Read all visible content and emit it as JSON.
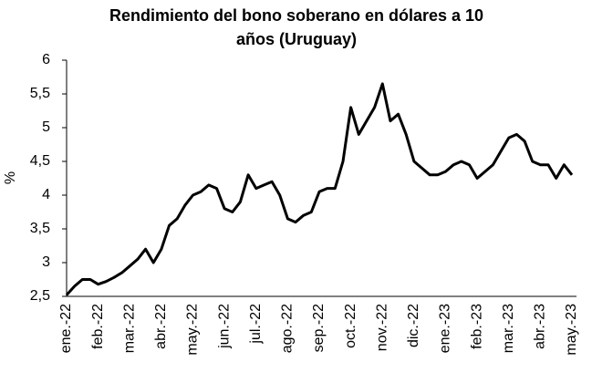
{
  "chart_data": {
    "type": "line",
    "title": "Rendimiento del bono soberano en dólares a 10",
    "subtitle": "años (Uruguay)",
    "y_label": "%",
    "categories": [
      "ene.-22",
      null,
      null,
      null,
      "feb.-22",
      null,
      null,
      null,
      "mar.-22",
      null,
      null,
      null,
      "abr.-22",
      null,
      null,
      null,
      "may.-22",
      null,
      null,
      null,
      "jun.-22",
      null,
      null,
      null,
      "jul.-22",
      null,
      null,
      null,
      "ago.-22",
      null,
      null,
      null,
      "sep.-22",
      null,
      null,
      null,
      "oct.-22",
      null,
      null,
      null,
      "nov.-22",
      null,
      null,
      null,
      "dic.-22",
      null,
      null,
      null,
      "ene.-23",
      null,
      null,
      null,
      "feb.-23",
      null,
      null,
      null,
      "mar.-23",
      null,
      null,
      null,
      "abr.-23",
      null,
      null,
      null,
      "may.-23"
    ],
    "series": [
      {
        "name": "Rendimiento",
        "color": "#000000",
        "values": [
          2.52,
          2.65,
          2.75,
          2.75,
          2.68,
          2.72,
          2.78,
          2.85,
          2.95,
          3.05,
          3.2,
          3.0,
          3.2,
          3.55,
          3.65,
          3.85,
          4.0,
          4.05,
          4.15,
          4.1,
          3.8,
          3.75,
          3.9,
          4.3,
          4.1,
          4.15,
          4.2,
          4.0,
          3.65,
          3.6,
          3.7,
          3.75,
          4.05,
          4.1,
          4.1,
          4.5,
          5.3,
          4.9,
          5.1,
          5.3,
          5.65,
          5.1,
          5.2,
          4.9,
          4.5,
          4.4,
          4.3,
          4.3,
          4.35,
          4.45,
          4.5,
          4.45,
          4.25,
          4.35,
          4.45,
          4.65,
          4.85,
          4.9,
          4.8,
          4.5,
          4.45,
          4.45,
          4.25,
          4.45,
          4.3
        ]
      }
    ],
    "ylim": [
      2.5,
      6
    ],
    "yticks": [
      {
        "value": 2.5,
        "label": "2,5"
      },
      3,
      {
        "value": 3.5,
        "label": "3,5"
      },
      4,
      {
        "value": 4.5,
        "label": "4,5"
      },
      5,
      {
        "value": 5.5,
        "label": "5,5"
      },
      6
    ],
    "grid": false
  }
}
